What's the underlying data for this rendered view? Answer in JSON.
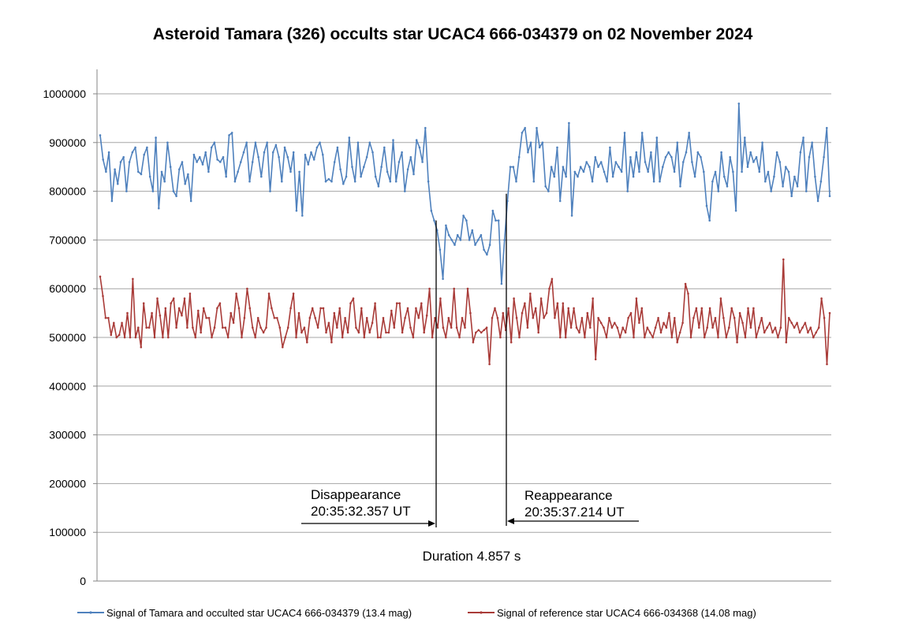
{
  "chart_data": {
    "type": "line",
    "title": "Asteroid Tamara (326) occults star UCAC4 666-034379 on 02 November 2024",
    "xlabel": "",
    "ylabel": "",
    "ylim": [
      0,
      1000000
    ],
    "yticks": [
      0,
      100000,
      200000,
      300000,
      400000,
      500000,
      600000,
      700000,
      800000,
      900000,
      1000000
    ],
    "ytick_labels": [
      "0",
      "100000",
      "200000",
      "300000",
      "400000",
      "500000",
      "600000",
      "700000",
      "800000",
      "900000",
      "1000000"
    ],
    "grid": "horizontal",
    "legend_position": "bottom",
    "colors": {
      "target": "#4f81bd",
      "reference": "#a93b38",
      "grid": "#a6a6a6",
      "axis": "#868686",
      "annotation": "#000000"
    },
    "series": [
      {
        "name": "Signal of Tamara and occulted star UCAC4 666-034379 (13.4 mag)",
        "values": [
          915000,
          865000,
          840000,
          880000,
          780000,
          845000,
          815000,
          860000,
          870000,
          800000,
          860000,
          880000,
          890000,
          840000,
          835000,
          875000,
          890000,
          830000,
          800000,
          910000,
          765000,
          840000,
          820000,
          900000,
          850000,
          800000,
          790000,
          845000,
          860000,
          815000,
          835000,
          780000,
          875000,
          860000,
          870000,
          855000,
          880000,
          840000,
          890000,
          900000,
          865000,
          860000,
          870000,
          830000,
          915000,
          920000,
          820000,
          840000,
          860000,
          880000,
          900000,
          820000,
          860000,
          900000,
          870000,
          830000,
          880000,
          900000,
          800000,
          880000,
          895000,
          870000,
          820000,
          890000,
          870000,
          840000,
          880000,
          760000,
          840000,
          750000,
          875000,
          855000,
          880000,
          865000,
          890000,
          900000,
          875000,
          820000,
          825000,
          820000,
          860000,
          890000,
          845000,
          815000,
          830000,
          910000,
          850000,
          820000,
          900000,
          830000,
          850000,
          870000,
          900000,
          880000,
          830000,
          810000,
          850000,
          890000,
          840000,
          820000,
          905000,
          820000,
          860000,
          880000,
          800000,
          845000,
          870000,
          835000,
          905000,
          890000,
          860000,
          930000,
          820000,
          760000,
          740000,
          720000,
          680000,
          620000,
          730000,
          710000,
          700000,
          690000,
          710000,
          700000,
          750000,
          740000,
          700000,
          720000,
          690000,
          700000,
          710000,
          680000,
          670000,
          690000,
          760000,
          740000,
          740000,
          610000,
          700000,
          780000,
          850000,
          850000,
          820000,
          870000,
          920000,
          930000,
          880000,
          900000,
          820000,
          930000,
          890000,
          900000,
          810000,
          800000,
          850000,
          830000,
          890000,
          780000,
          850000,
          830000,
          940000,
          750000,
          840000,
          830000,
          850000,
          840000,
          860000,
          850000,
          820000,
          870000,
          850000,
          860000,
          840000,
          820000,
          890000,
          830000,
          860000,
          850000,
          840000,
          920000,
          800000,
          870000,
          830000,
          880000,
          840000,
          920000,
          860000,
          840000,
          880000,
          820000,
          910000,
          820000,
          850000,
          870000,
          880000,
          870000,
          840000,
          900000,
          810000,
          860000,
          880000,
          920000,
          860000,
          830000,
          880000,
          870000,
          840000,
          770000,
          740000,
          820000,
          840000,
          800000,
          880000,
          830000,
          810000,
          870000,
          840000,
          760000,
          980000,
          840000,
          910000,
          850000,
          880000,
          860000,
          870000,
          840000,
          900000,
          820000,
          840000,
          800000,
          830000,
          880000,
          860000,
          810000,
          850000,
          840000,
          790000,
          830000,
          810000,
          880000,
          910000,
          800000,
          870000,
          900000,
          830000,
          780000,
          820000,
          870000,
          930000,
          790000
        ]
      },
      {
        "name": "Signal of reference star UCAC4 666-034368 (14.08 mag)",
        "values": [
          625000,
          585000,
          540000,
          540000,
          505000,
          530000,
          500000,
          505000,
          530000,
          500000,
          550000,
          500000,
          620000,
          500000,
          520000,
          480000,
          570000,
          520000,
          520000,
          550000,
          500000,
          580000,
          545000,
          500000,
          560000,
          500000,
          570000,
          580000,
          520000,
          560000,
          545000,
          580000,
          520000,
          590000,
          520000,
          500000,
          555000,
          510000,
          560000,
          540000,
          540000,
          500000,
          520000,
          560000,
          570000,
          520000,
          520000,
          500000,
          550000,
          530000,
          590000,
          560000,
          500000,
          540000,
          600000,
          560000,
          520000,
          500000,
          540000,
          520000,
          510000,
          520000,
          590000,
          560000,
          540000,
          540000,
          520000,
          480000,
          500000,
          520000,
          560000,
          590000,
          500000,
          550000,
          510000,
          520000,
          490000,
          540000,
          560000,
          540000,
          520000,
          560000,
          560000,
          510000,
          530000,
          490000,
          550000,
          520000,
          560000,
          500000,
          540000,
          510000,
          570000,
          580000,
          520000,
          510000,
          560000,
          500000,
          540000,
          510000,
          530000,
          570000,
          500000,
          500000,
          540000,
          510000,
          510000,
          555000,
          520000,
          570000,
          570000,
          510000,
          540000,
          560000,
          520000,
          500000,
          560000,
          540000,
          570000,
          510000,
          545000,
          600000,
          500000,
          540000,
          520000,
          580000,
          520000,
          500000,
          540000,
          520000,
          600000,
          520000,
          500000,
          540000,
          520000,
          600000,
          550000,
          490000,
          510000,
          515000,
          510000,
          515000,
          520000,
          445000,
          540000,
          560000,
          540000,
          500000,
          550000,
          515000,
          560000,
          490000,
          580000,
          540000,
          500000,
          550000,
          570000,
          520000,
          590000,
          540000,
          560000,
          510000,
          580000,
          540000,
          550000,
          600000,
          620000,
          540000,
          570000,
          500000,
          570000,
          500000,
          560000,
          520000,
          560000,
          520000,
          510000,
          540000,
          500000,
          550000,
          520000,
          580000,
          455000,
          540000,
          530000,
          520000,
          500000,
          540000,
          520000,
          530000,
          520000,
          500000,
          520000,
          510000,
          540000,
          550000,
          500000,
          580000,
          530000,
          560000,
          500000,
          520000,
          510000,
          500000,
          520000,
          540000,
          510000,
          530000,
          520000,
          550000,
          500000,
          540000,
          490000,
          510000,
          530000,
          610000,
          590000,
          500000,
          540000,
          560000,
          520000,
          560000,
          500000,
          520000,
          560000,
          520000,
          540000,
          500000,
          580000,
          540000,
          500000,
          520000,
          560000,
          540000,
          490000,
          550000,
          530000,
          500000,
          560000,
          520000,
          560000,
          500000,
          520000,
          540000,
          510000,
          520000,
          530000,
          510000,
          520000,
          500000,
          520000,
          660000,
          490000,
          540000,
          530000,
          520000,
          530000,
          510000,
          520000,
          530000,
          510000,
          520000,
          500000,
          510000,
          520000,
          580000,
          540000,
          445000,
          550000
        ]
      }
    ],
    "annotations": {
      "disappearance": {
        "label": "Disappearance",
        "time": "20:35:32.357 UT"
      },
      "reappearance": {
        "label": "Reappearance",
        "time": "20:35:37.214 UT"
      },
      "duration": "Duration 4.857 s"
    }
  }
}
